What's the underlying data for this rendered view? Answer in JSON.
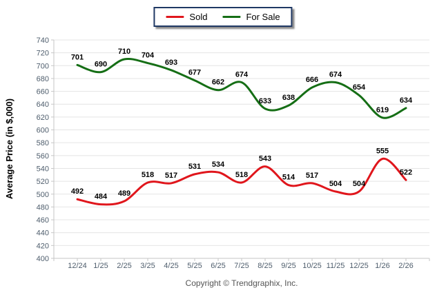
{
  "chart_data": {
    "type": "line",
    "title": "",
    "categories": [
      "12/24",
      "1/25",
      "2/25",
      "3/25",
      "4/25",
      "5/25",
      "6/25",
      "7/25",
      "8/25",
      "9/25",
      "10/25",
      "11/25",
      "12/25",
      "1/26",
      "2/26"
    ],
    "series": [
      {
        "name": "Sold",
        "color": "#e0161c",
        "values": [
          492,
          484,
          489,
          518,
          517,
          531,
          534,
          518,
          543,
          514,
          517,
          504,
          504,
          555,
          522
        ]
      },
      {
        "name": "For Sale",
        "color": "#156e15",
        "values": [
          701,
          690,
          710,
          704,
          693,
          677,
          662,
          674,
          633,
          638,
          666,
          674,
          654,
          619,
          634
        ]
      }
    ],
    "xlabel": "",
    "ylabel": "Average Price (in $,000)",
    "ylim": [
      400,
      740
    ],
    "ytick_step": 20,
    "grid": "horizontal",
    "legend_position": "top-center",
    "smooth": true
  },
  "colors": {
    "gridline": "#e4e4e4",
    "axis": "#c6c6c6",
    "tick_label": "#4e5d6c",
    "data_label": "#000000",
    "legend_border": "#1f3864",
    "copyright_text": "#555555"
  },
  "footer": {
    "copyright": "Copyright © Trendgraphix, Inc."
  }
}
